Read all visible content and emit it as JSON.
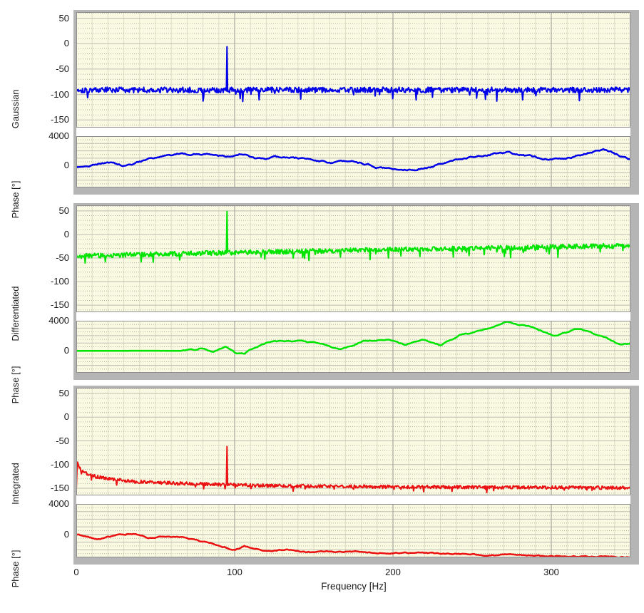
{
  "axis": {
    "xlabel": "Frequency [Hz]",
    "x_ticks": [
      0,
      100,
      200,
      300
    ],
    "x_max": 350
  },
  "colors": {
    "gaussian": "#0202e8",
    "differentiated": "#00e402",
    "integrated": "#ea1212",
    "plot_background": "#fafae3",
    "frame_gray": "#b5b5b5",
    "grid_major": "#b3b2a0",
    "grid_minor": "#c9c8ae"
  },
  "chart_data": [
    {
      "title": "Gaussian",
      "type": "line",
      "kind": "magnitude",
      "color": "#0202e8",
      "x_range": [
        0,
        350
      ],
      "y_view": [
        -165,
        62
      ],
      "y_ticks": [
        50,
        0,
        -50,
        -100,
        -150
      ],
      "grid": {
        "h_major": 50,
        "h_minor": 10,
        "v_major": 100,
        "v_minor": 10
      },
      "legend": "none",
      "series": {
        "seed": 101,
        "n": 880,
        "envelope": [
          [
            0,
            -91
          ],
          [
            350,
            -91
          ]
        ],
        "noise": 5.5,
        "dip_prob": 0.045,
        "dip_max": 24,
        "spike": {
          "f": 95,
          "value": -6
        }
      }
    },
    {
      "title": "Phase [°]",
      "type": "line",
      "kind": "phase",
      "color": "#0202e8",
      "x_range": [
        0,
        350
      ],
      "y_view": [
        -3000,
        4000
      ],
      "y_ticks": [
        4000,
        0
      ],
      "grid": {
        "h_major": 1000,
        "h_minor": 500,
        "v_major": 100,
        "v_minor": 10
      },
      "series": {
        "seed": 202,
        "n": 430,
        "anchors": [
          [
            0,
            -250
          ],
          [
            10,
            100
          ],
          [
            20,
            470
          ],
          [
            31,
            -130
          ],
          [
            44,
            730
          ],
          [
            64,
            1460
          ],
          [
            82,
            1620
          ],
          [
            94,
            1300
          ],
          [
            103,
            1550
          ],
          [
            116,
            825
          ],
          [
            131,
            1140
          ],
          [
            146,
            900
          ],
          [
            161,
            350
          ],
          [
            176,
            500
          ],
          [
            191,
            -285
          ],
          [
            206,
            -600
          ],
          [
            221,
            -285
          ],
          [
            231,
            190
          ],
          [
            243,
            980
          ],
          [
            258,
            1460
          ],
          [
            273,
            1780
          ],
          [
            288,
            1140
          ],
          [
            303,
            825
          ],
          [
            318,
            1300
          ],
          [
            333,
            2250
          ],
          [
            340,
            1620
          ],
          [
            350,
            825
          ]
        ],
        "jitter": 200,
        "jitter_smooth": 0.78
      }
    },
    {
      "title": "Differentiated",
      "type": "line",
      "kind": "magnitude",
      "color": "#00e402",
      "x_range": [
        0,
        350
      ],
      "y_view": [
        -165,
        62
      ],
      "y_ticks": [
        50,
        0,
        -50,
        -100,
        -150
      ],
      "grid": {
        "h_major": 50,
        "h_minor": 10,
        "v_major": 100,
        "v_minor": 10
      },
      "series": {
        "seed": 303,
        "n": 880,
        "envelope": [
          [
            0,
            -46
          ],
          [
            60,
            -41
          ],
          [
            120,
            -37
          ],
          [
            200,
            -32
          ],
          [
            280,
            -28
          ],
          [
            350,
            -23
          ]
        ],
        "noise": 5,
        "dip_prob": 0.05,
        "dip_max": 20,
        "spike": {
          "f": 95,
          "value": 49
        }
      }
    },
    {
      "title": "Phase [°]",
      "type": "line",
      "kind": "phase",
      "color": "#00e402",
      "x_range": [
        0,
        350
      ],
      "y_view": [
        -3000,
        4000
      ],
      "y_ticks": [
        4000,
        0
      ],
      "grid": {
        "h_major": 1000,
        "h_minor": 500,
        "v_major": 100,
        "v_minor": 10
      },
      "series": {
        "seed": 404,
        "n": 430,
        "anchors": [
          [
            0,
            -60
          ],
          [
            40,
            -40
          ],
          [
            63,
            -40
          ],
          [
            75,
            100
          ],
          [
            79,
            420
          ],
          [
            86,
            -105
          ],
          [
            94,
            420
          ],
          [
            100,
            -280
          ],
          [
            106,
            -456
          ],
          [
            111,
            245
          ],
          [
            122,
            1120
          ],
          [
            137,
            1300
          ],
          [
            152,
            950
          ],
          [
            159,
            600
          ],
          [
            167,
            70
          ],
          [
            182,
            1300
          ],
          [
            197,
            1470
          ],
          [
            207,
            770
          ],
          [
            219,
            1470
          ],
          [
            230,
            770
          ],
          [
            242,
            2000
          ],
          [
            257,
            2700
          ],
          [
            272,
            3750
          ],
          [
            287,
            3230
          ],
          [
            302,
            2000
          ],
          [
            317,
            2880
          ],
          [
            332,
            2000
          ],
          [
            344,
            600
          ],
          [
            350,
            950
          ]
        ],
        "jitter": 140,
        "jitter_smooth": 0.78,
        "flat_until": 63
      }
    },
    {
      "title": "Integrated",
      "type": "line",
      "kind": "magnitude",
      "color": "#ea1212",
      "x_range": [
        0,
        350
      ],
      "y_view": [
        -165,
        62
      ],
      "y_ticks": [
        50,
        0,
        -50,
        -100,
        -150
      ],
      "grid": {
        "h_major": 50,
        "h_minor": 10,
        "v_major": 100,
        "v_minor": 10
      },
      "series": {
        "seed": 505,
        "n": 880,
        "envelope": [
          [
            0,
            -150
          ],
          [
            0.6,
            -96
          ],
          [
            3,
            -112
          ],
          [
            6,
            -118
          ],
          [
            12,
            -125
          ],
          [
            22,
            -131
          ],
          [
            38,
            -136
          ],
          [
            60,
            -139
          ],
          [
            90,
            -142
          ],
          [
            130,
            -145
          ],
          [
            200,
            -147
          ],
          [
            280,
            -148
          ],
          [
            350,
            -149
          ]
        ],
        "noise": 3.5,
        "dip_prob": 0.05,
        "dip_max": 9,
        "spike": {
          "f": 95,
          "value": -62
        }
      }
    },
    {
      "title": "Phase [°]",
      "type": "line",
      "kind": "phase",
      "color": "#ea1212",
      "x_range": [
        0,
        350
      ],
      "y_view": [
        -3000,
        4000
      ],
      "y_ticks": [
        4000,
        0
      ],
      "grid": {
        "h_major": 1000,
        "h_minor": 500,
        "v_major": 100,
        "v_minor": 10
      },
      "series": {
        "seed": 606,
        "n": 430,
        "anchors": [
          [
            0,
            -50
          ],
          [
            5,
            -180
          ],
          [
            13,
            -640
          ],
          [
            20,
            -330
          ],
          [
            28,
            -30
          ],
          [
            37,
            120
          ],
          [
            46,
            -480
          ],
          [
            58,
            -180
          ],
          [
            67,
            -330
          ],
          [
            76,
            -790
          ],
          [
            85,
            -1090
          ],
          [
            92,
            -1700
          ],
          [
            100,
            -2000
          ],
          [
            106,
            -1545
          ],
          [
            112,
            -2000
          ],
          [
            121,
            -2150
          ],
          [
            133,
            -2000
          ],
          [
            148,
            -2300
          ],
          [
            170,
            -2250
          ],
          [
            200,
            -2400
          ],
          [
            240,
            -2550
          ],
          [
            280,
            -2750
          ],
          [
            320,
            -2870
          ],
          [
            350,
            -2940
          ]
        ],
        "jitter": 130,
        "jitter_smooth": 0.78
      }
    }
  ]
}
